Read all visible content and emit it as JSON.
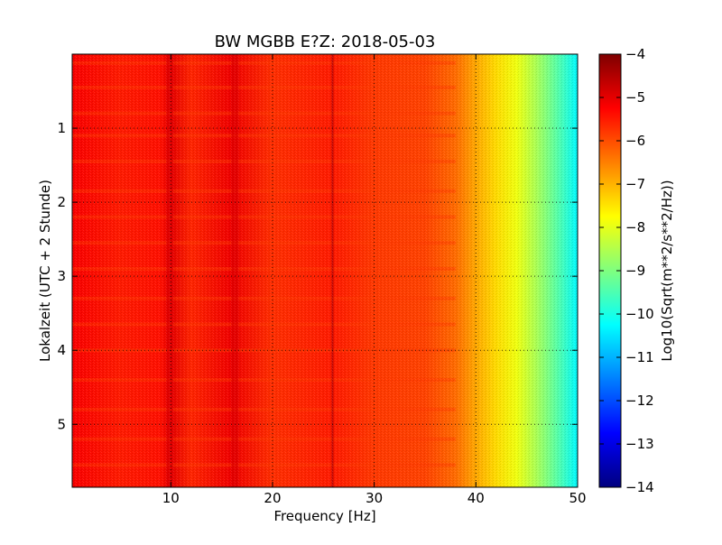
{
  "chart_data": {
    "type": "heatmap",
    "title": "BW MGBB E?Z: 2018-05-03",
    "xlabel": "Frequency [Hz]",
    "ylabel": "Lokalzeit (UTC + 2 Stunde)",
    "xlim": [
      0.3,
      50
    ],
    "ylim": [
      5.85,
      0
    ],
    "y_inverted": true,
    "grid": true,
    "grid_style": "dotted",
    "x_ticks": [
      10,
      20,
      30,
      40,
      50
    ],
    "x_tick_labels": [
      "10",
      "20",
      "30",
      "40",
      "50"
    ],
    "y_ticks": [
      1,
      2,
      3,
      4,
      5
    ],
    "y_tick_labels": [
      "1",
      "2",
      "3",
      "4",
      "5"
    ],
    "colormap": "jet",
    "colorbar": {
      "label": "Log10(Sqrt(m**2/s**2/Hz))",
      "range": [
        -14,
        -4
      ],
      "ticks": [
        -4,
        -5,
        -6,
        -7,
        -8,
        -9,
        -10,
        -11,
        -12,
        -13,
        -14
      ],
      "tick_labels": [
        "−4",
        "−5",
        "−6",
        "−7",
        "−8",
        "−9",
        "−10",
        "−11",
        "−12",
        "−13",
        "−14"
      ]
    },
    "spectral_profile": {
      "frequency_hz": [
        0.3,
        5,
        9,
        10,
        12,
        16,
        20,
        26,
        30,
        35,
        38,
        40,
        42,
        44,
        46,
        48,
        50
      ],
      "log10_amplitude": [
        -5.2,
        -5.5,
        -5.4,
        -5.0,
        -5.6,
        -5.1,
        -5.7,
        -5.5,
        -5.8,
        -5.9,
        -6.3,
        -6.9,
        -7.4,
        -7.9,
        -8.6,
        -9.4,
        -10.3
      ]
    },
    "spectral_lines_hz": [
      9.9,
      16.3,
      25.9
    ],
    "periodic_bands_hours": [
      0.12,
      0.45,
      0.8,
      1.1,
      1.45,
      1.85,
      2.2,
      2.55,
      2.9,
      3.3,
      3.65,
      4.0,
      4.4,
      4.8,
      5.2,
      5.55
    ]
  }
}
